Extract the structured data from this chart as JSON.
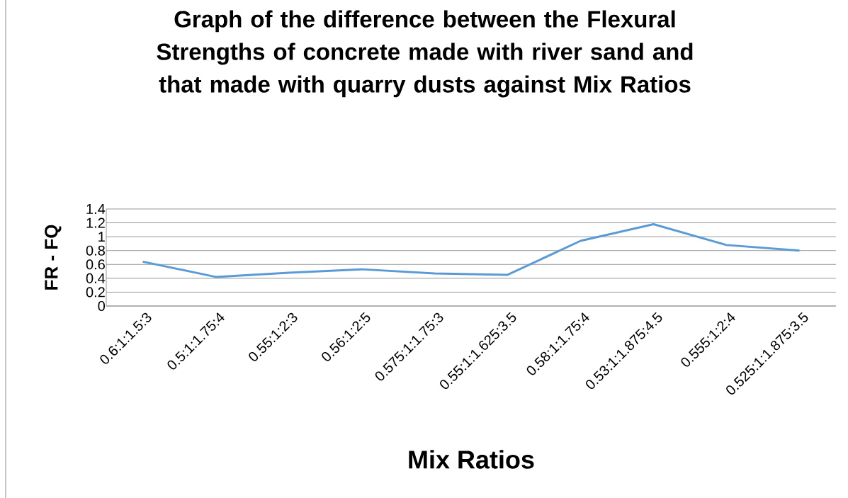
{
  "chart_data": {
    "type": "line",
    "title": "Graph of the difference between the Flexural Strengths of concrete made with river sand and that made with quarry dusts against Mix Ratios",
    "xlabel": "Mix Ratios",
    "ylabel": "FR - FQ",
    "categories": [
      "0.6:1:1.5:3",
      "0.5:1:1.75:4",
      "0.55:1:2:3",
      "0.56:1:2:5",
      "0.575:1:1.75:3",
      "0.55:1:1.625:3.5",
      "0.58:1:1.75:4",
      "0.53:1:1.875:4.5",
      "0.555:1:2:4",
      "0.525:1:1.875:3.5"
    ],
    "series": [
      {
        "color": "#5b9bd5",
        "values": [
          0.64,
          0.42,
          0.48,
          0.53,
          0.47,
          0.45,
          0.94,
          1.18,
          0.88,
          0.8
        ]
      }
    ],
    "ylim": [
      0,
      1.4
    ],
    "yticks": [
      0,
      0.2,
      0.4,
      0.6,
      0.8,
      1,
      1.2,
      1.4
    ],
    "grid": "y",
    "marker": "none",
    "line_style": "solid"
  }
}
